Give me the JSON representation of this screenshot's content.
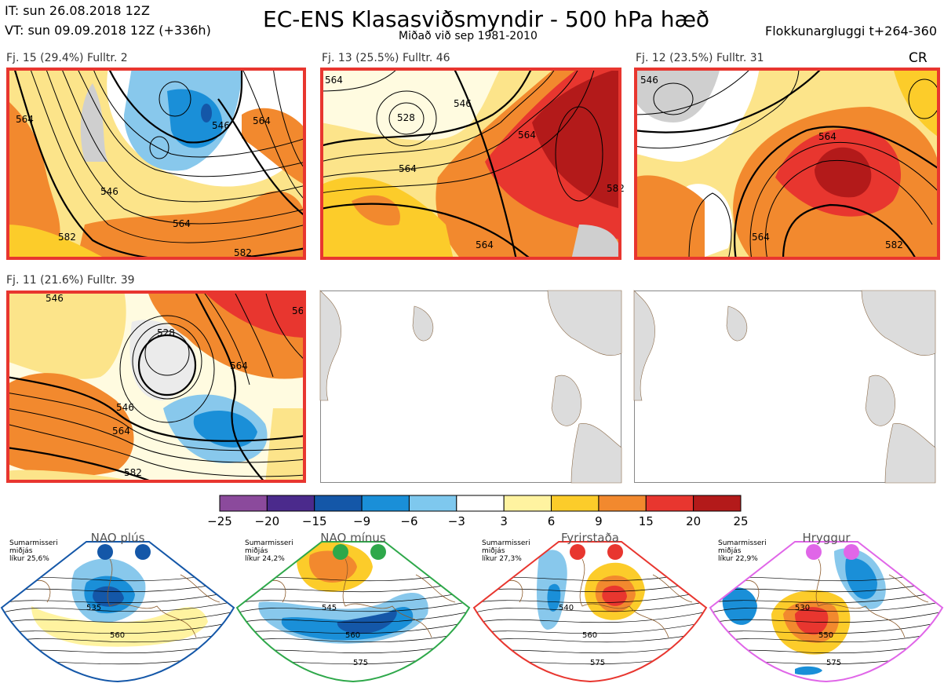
{
  "header": {
    "it": "IT: sun 26.08.2018 12Z",
    "vt": "VT: sun 09.09.2018 12Z  (+336h)",
    "title": "EC-ENS Klasasviðsmyndir - 500 hPa hæð",
    "subtitle": "Miðað við sep 1981-2010",
    "window": "Flokkunargluggi t+264-360",
    "cr": "CR"
  },
  "panels": [
    {
      "label": "Fj. 15 (29.4%)   Fulltr. 2",
      "contours": [
        "564",
        "546",
        "546",
        "564",
        "582",
        "564",
        "582"
      ]
    },
    {
      "label": "Fj. 13 (25.5%)   Fulltr. 46",
      "contours": [
        "564",
        "528",
        "546",
        "564",
        "564",
        "582",
        "564"
      ]
    },
    {
      "label": "Fj. 12 (23.5%)   Fulltr. 31",
      "contours": [
        "546",
        "564",
        "564",
        "582"
      ]
    },
    {
      "label": "Fj. 11 (21.6%)   Fulltr. 39",
      "contours": [
        "546",
        "528",
        "546",
        "564",
        "564",
        "582",
        "56"
      ]
    }
  ],
  "colorbar": {
    "ticks": [
      "−25",
      "−20",
      "−15",
      "−9",
      "−6",
      "−3",
      "3",
      "6",
      "9",
      "15",
      "20",
      "25"
    ],
    "colors": [
      "#8b4a9c",
      "#4b2a8c",
      "#1457a8",
      "#1a8fd8",
      "#7ec8ee",
      "#ffffff",
      "#fff3a0",
      "#fccc2a",
      "#f2892e",
      "#e8362f",
      "#b31a1a"
    ]
  },
  "regimes": [
    {
      "name": "NAO plús",
      "info": [
        "Sumarmisseri",
        "miðjás",
        "líkur 25,6%"
      ],
      "color": "#1457a8",
      "contours": [
        "535",
        "560"
      ]
    },
    {
      "name": "NAO mínus",
      "info": [
        "Sumarmisseri",
        "miðjás",
        "líkur 24,2%"
      ],
      "color": "#2ea84a",
      "contours": [
        "545",
        "560",
        "575"
      ]
    },
    {
      "name": "Fyrirstaða",
      "info": [
        "Sumarmisseri",
        "miðjás",
        "líkur 27,3%"
      ],
      "color": "#e8362f",
      "contours": [
        "540",
        "560",
        "575"
      ]
    },
    {
      "name": "Hryggur",
      "info": [
        "Sumarmisseri",
        "miðjás",
        "líkur 22,9%"
      ],
      "color": "#e066e8",
      "contours": [
        "530",
        "550",
        "575"
      ]
    }
  ]
}
